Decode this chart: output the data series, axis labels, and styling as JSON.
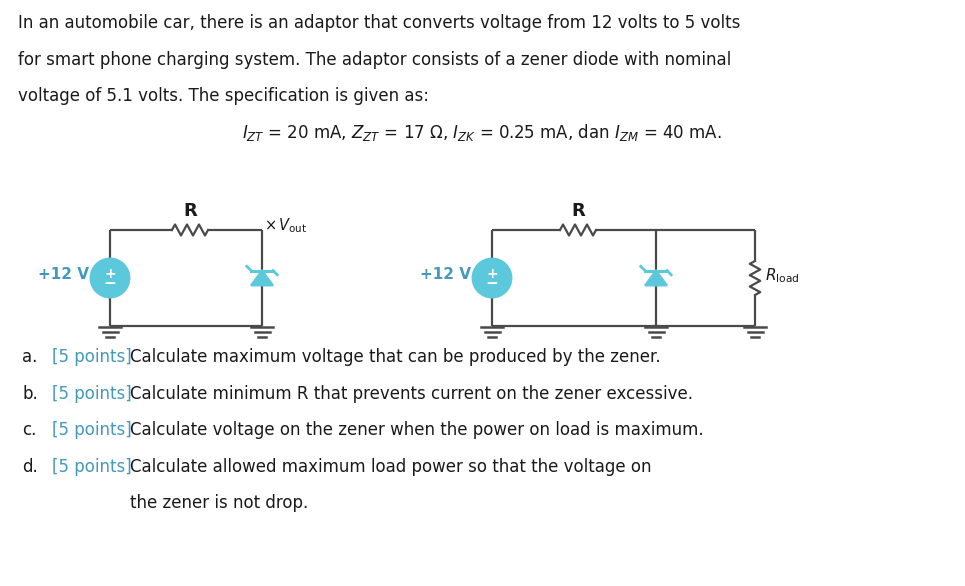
{
  "bg_color": "#ffffff",
  "text_color": "#1a1a1a",
  "blue_color": "#5bc8dc",
  "label_blue": "#4499bb",
  "circuit_line_color": "#4a4a4a",
  "para1": "In an automobile car, there is an adaptor that converts voltage from 12 volts to 5 volts",
  "para2": "for smart phone charging system. The adaptor consists of a zener diode with nominal",
  "para3": "voltage of 5.1 volts. The specification is given as:",
  "questions": [
    "Calculate maximum voltage that can be produced by the zener.",
    "Calculate minimum R that prevents current on the zener excessive.",
    "Calculate voltage on the zener when the power on load is maximum.",
    "Calculate allowed maximum load power so that the voltage on the zener is not drop."
  ],
  "q_labels": [
    "a.",
    "b.",
    "c.",
    "d."
  ],
  "q_points": [
    "[5 points]",
    "[5 points]",
    "[5 points]",
    "[5 points]"
  ]
}
